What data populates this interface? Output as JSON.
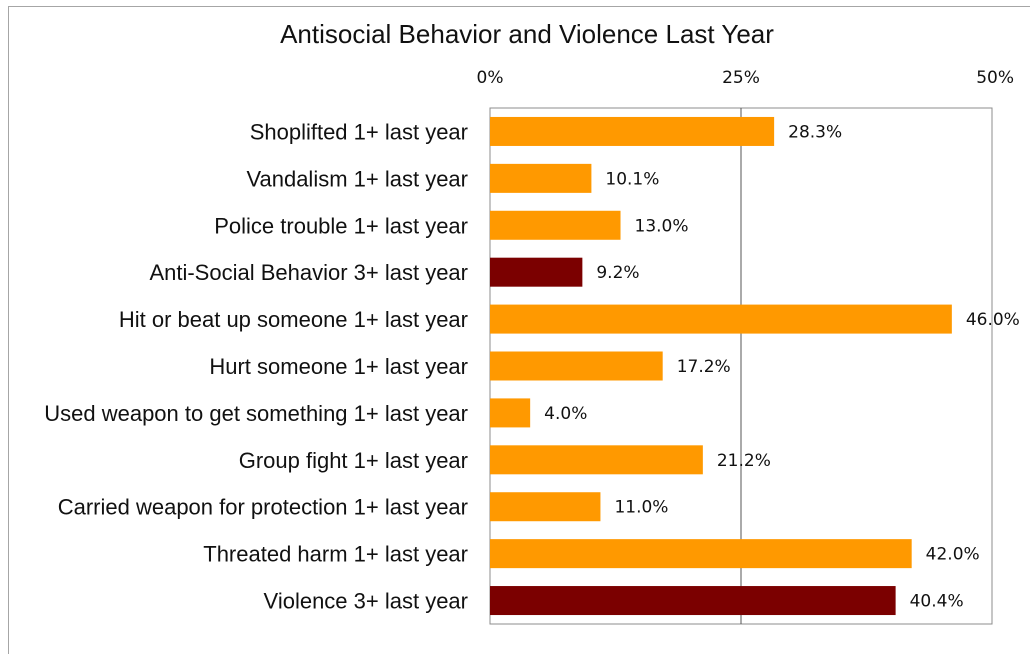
{
  "chart_data": {
    "type": "bar",
    "orientation": "horizontal",
    "title": "Antisocial Behavior and Violence Last Year",
    "xlabel": "",
    "ylabel": "",
    "xlim": [
      0,
      50
    ],
    "x_ticks": [
      "0%",
      "25%",
      "50%"
    ],
    "x_tick_values": [
      0,
      25,
      50
    ],
    "x_axis_position": "top",
    "grid": "vertical at 25%",
    "legend": "none",
    "categories": [
      "Shoplifted 1+ last year",
      "Vandalism 1+ last year",
      "Police trouble 1+ last year",
      "Anti-Social Behavior 3+ last year",
      "Hit or beat up someone 1+ last year",
      "Hurt someone 1+ last year",
      "Used weapon to get something 1+ last year",
      "Group fight 1+ last year",
      "Carried weapon for protection 1+ last year",
      "Threated harm 1+ last year",
      "Violence 3+ last year"
    ],
    "values": [
      28.3,
      10.1,
      13.0,
      9.2,
      46.0,
      17.2,
      4.0,
      21.2,
      11.0,
      42.0,
      40.4
    ],
    "value_labels": [
      "28.3%",
      "10.1%",
      "13.0%",
      "9.2%",
      "46.0%",
      "17.2%",
      "4.0%",
      "21.2%",
      "11.0%",
      "42.0%",
      "40.4%"
    ],
    "bar_colors": [
      "#ff9900",
      "#ff9900",
      "#ff9900",
      "#7b0000",
      "#ff9900",
      "#ff9900",
      "#ff9900",
      "#ff9900",
      "#ff9900",
      "#ff9900",
      "#7b0000"
    ]
  }
}
